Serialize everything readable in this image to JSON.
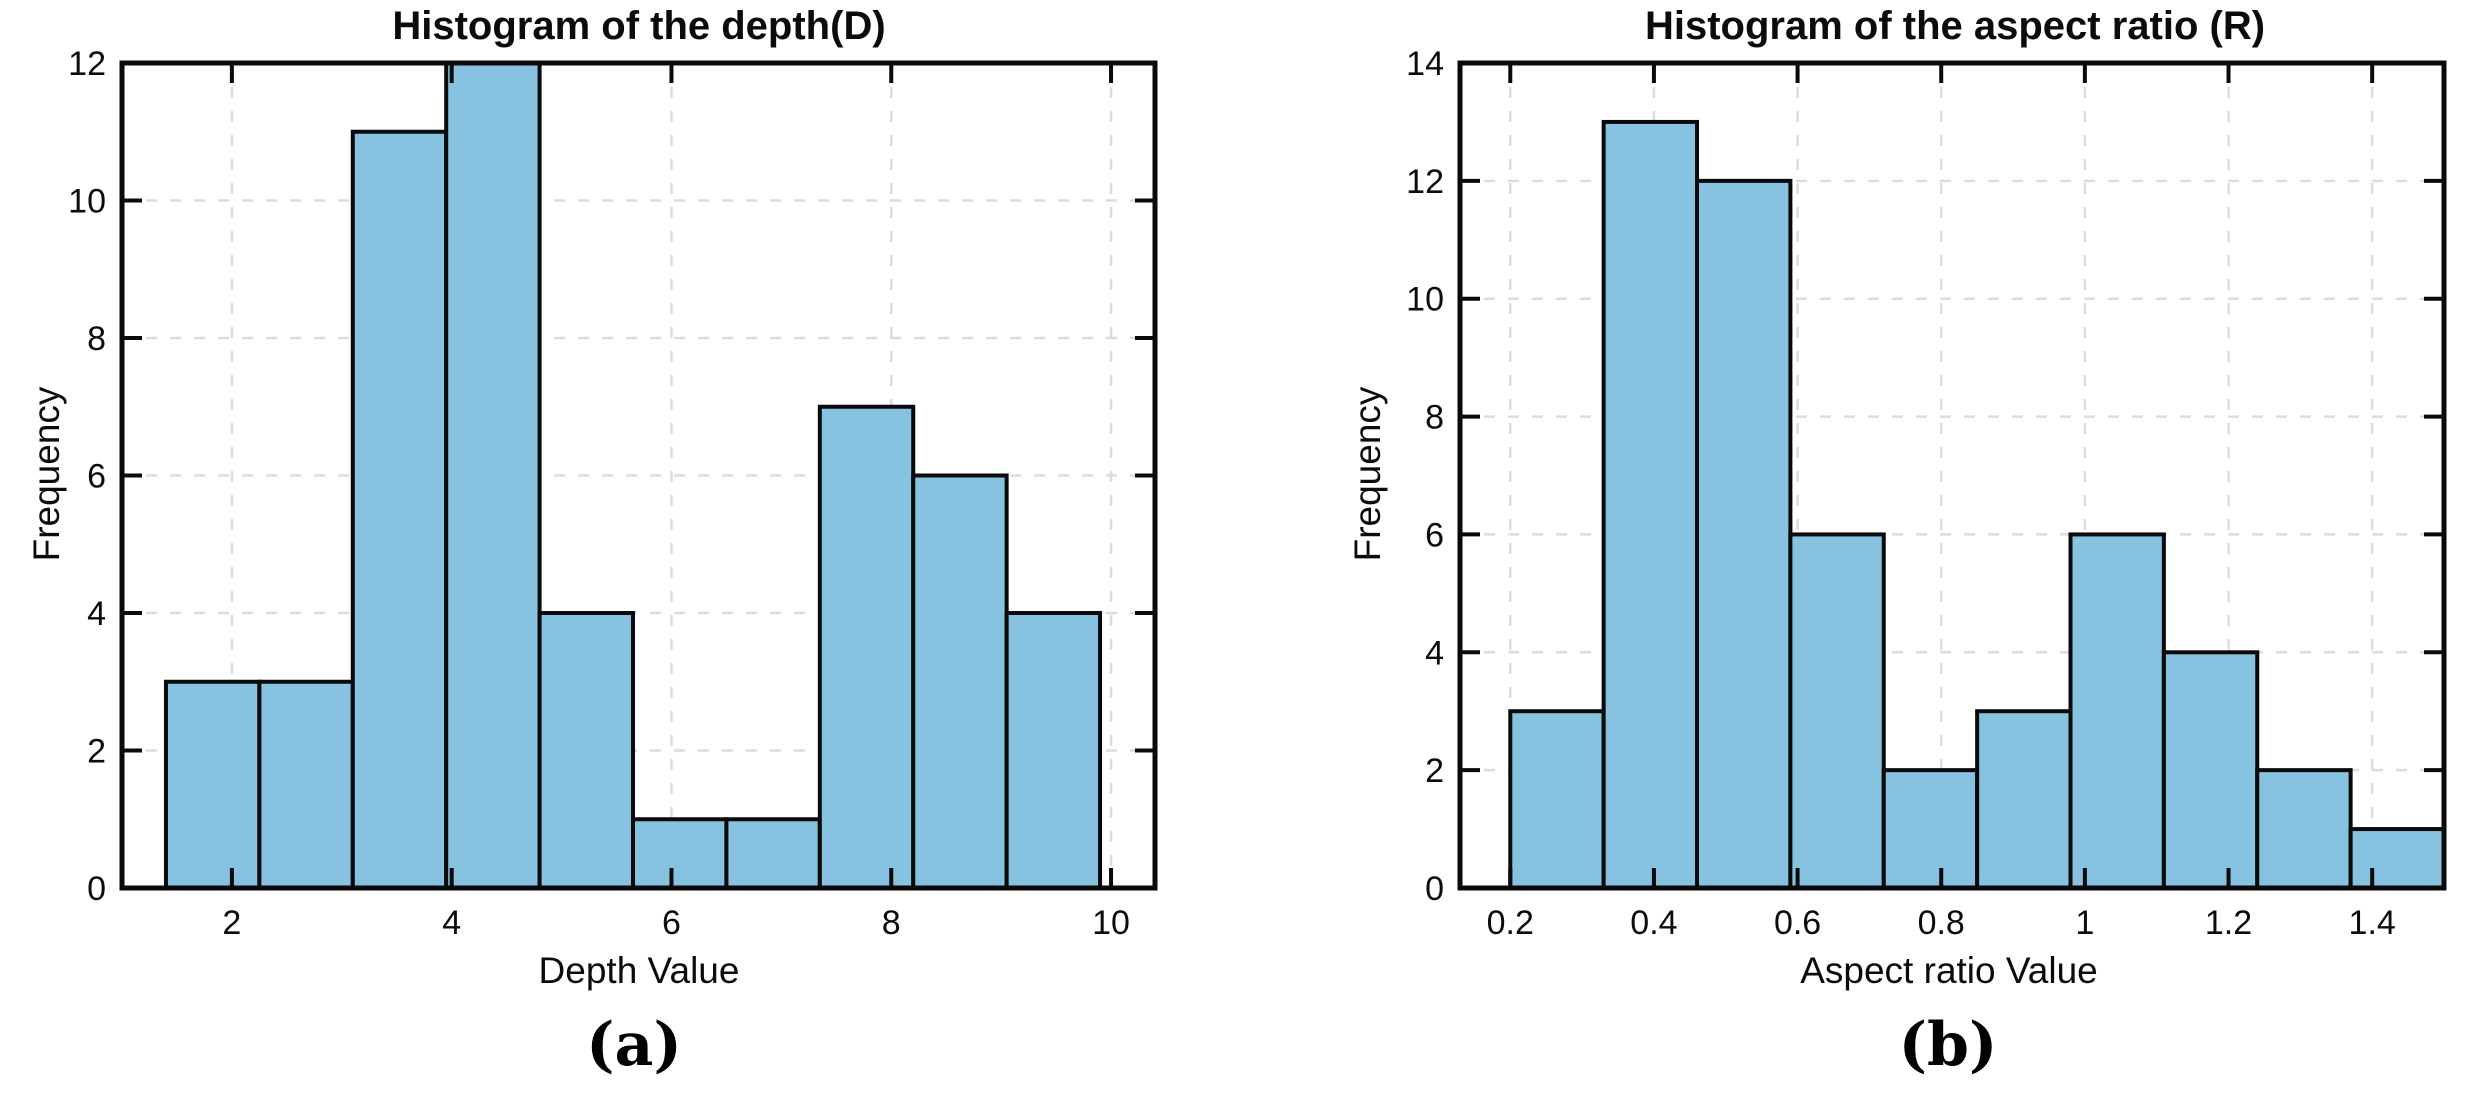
{
  "page": {
    "background": "#ffffff"
  },
  "chart_data": [
    {
      "type": "bar",
      "subtype": "histogram",
      "title": "Histogram of the depth(D)",
      "xlabel": "Depth Value",
      "ylabel": "Frequency",
      "caption": "(a)",
      "bin_edges": [
        1.4,
        2.25,
        3.1,
        3.95,
        4.8,
        5.65,
        6.5,
        7.35,
        8.2,
        9.05,
        9.9
      ],
      "values": [
        3,
        3,
        11,
        12,
        4,
        1,
        1,
        7,
        6,
        4
      ],
      "total_count": 52,
      "xticks": [
        2,
        4,
        6,
        8,
        10
      ],
      "xtick_labels": [
        "2",
        "4",
        "6",
        "8",
        "10"
      ],
      "yticks": [
        0,
        2,
        4,
        6,
        8,
        10,
        12
      ],
      "ytick_labels": [
        "0",
        "2",
        "4",
        "6",
        "8",
        "10",
        "12"
      ],
      "xlim": [
        1.0,
        10.4
      ],
      "ylim": [
        0,
        12
      ],
      "grid": true,
      "legend": "none",
      "colors": {
        "bar_fill": "#87C2E1",
        "bar_edge": "#0a0a0a",
        "grid": "#dcdcdc",
        "axis": "#0a0a0a"
      }
    },
    {
      "type": "bar",
      "subtype": "histogram",
      "title": "Histogram of the aspect ratio (R)",
      "xlabel": "Aspect ratio Value",
      "ylabel": "Frequency",
      "caption": "(b)",
      "bin_edges": [
        0.2,
        0.33,
        0.46,
        0.59,
        0.72,
        0.85,
        0.98,
        1.11,
        1.24,
        1.37,
        1.5
      ],
      "values": [
        3,
        13,
        12,
        6,
        2,
        3,
        6,
        4,
        2,
        1
      ],
      "total_count": 52,
      "xticks": [
        0.2,
        0.4,
        0.6,
        0.8,
        1,
        1.2,
        1.4
      ],
      "xtick_labels": [
        "0.2",
        "0.4",
        "0.6",
        "0.8",
        "1",
        "1.2",
        "1.4"
      ],
      "yticks": [
        0,
        2,
        4,
        6,
        8,
        10,
        12,
        14
      ],
      "ytick_labels": [
        "0",
        "2",
        "4",
        "6",
        "8",
        "10",
        "12",
        "14"
      ],
      "xlim": [
        0.13,
        1.5
      ],
      "ylim": [
        0,
        14
      ],
      "grid": true,
      "legend": "none",
      "colors": {
        "bar_fill": "#87C2E1",
        "bar_edge": "#0a0a0a",
        "grid": "#dcdcdc",
        "axis": "#0a0a0a"
      }
    }
  ]
}
